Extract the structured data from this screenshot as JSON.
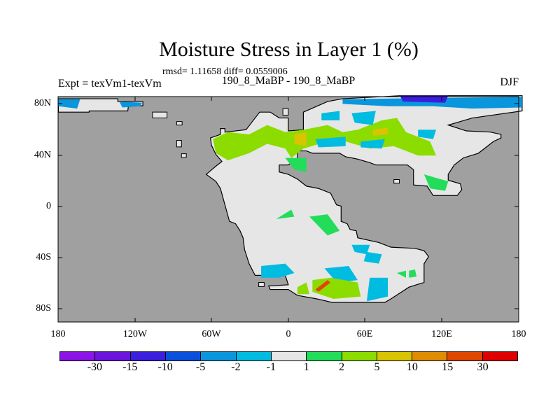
{
  "title": "Moisture Stress in Layer 1 (%)",
  "stats": "rmsd= 1.11658 diff= 0.0559006",
  "left_label": "Expt = texVm1-texVm",
  "center_label": "190_8_MaBP - 190_8_MaBP",
  "right_label": "DJF",
  "y_ticks": [
    "80N",
    "40N",
    "0",
    "40S",
    "80S"
  ],
  "x_ticks": [
    "180",
    "120W",
    "60W",
    "0",
    "60E",
    "120E",
    "180"
  ],
  "colorbar": {
    "labels": [
      "-30",
      "-15",
      "-10",
      "-5",
      "-2",
      "-1",
      "1",
      "2",
      "5",
      "10",
      "15",
      "30"
    ],
    "colors": [
      "#8c14e6",
      "#6a14dc",
      "#3c1ede",
      "#0a50dc",
      "#0a96dc",
      "#00bce0",
      "#e6e6e6",
      "#22dc5a",
      "#8cdc00",
      "#d8c400",
      "#e08c00",
      "#e04600",
      "#e00000"
    ]
  },
  "colors": {
    "ocean": "#a0a0a0",
    "land": "#e6e6e6"
  }
}
